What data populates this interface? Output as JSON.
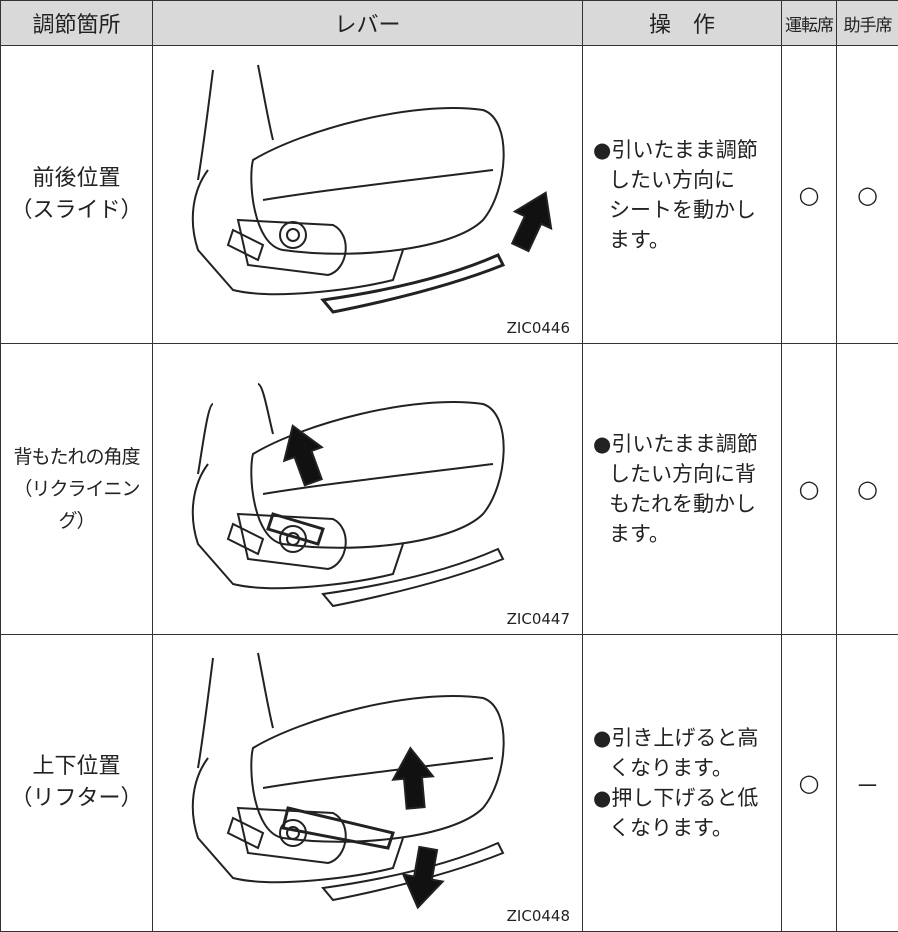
{
  "table": {
    "header": [
      "調節箇所",
      "レバー",
      "操　作",
      "運転席",
      "助手席"
    ],
    "rows": [
      {
        "location": [
          "前後位置",
          "（スライド）"
        ],
        "code": "ZIC0446",
        "operation": [
          [
            "●引いたまま調節",
            "したい方向に",
            "シートを動かし",
            "ます。"
          ]
        ],
        "driver": "○",
        "passenger": "○"
      },
      {
        "location": [
          "背もたれの角度",
          "（リクライニング）"
        ],
        "code": "ZIC0447",
        "operation": [
          [
            "●引いたまま調節",
            "したい方向に背",
            "もたれを動かし",
            "ます。"
          ]
        ],
        "driver": "○",
        "passenger": "○"
      },
      {
        "location": [
          "上下位置",
          "（リフター）"
        ],
        "code": "ZIC0448",
        "operation": [
          [
            "●引き上げると高",
            "くなります。"
          ],
          [
            "●押し下げると低",
            "くなります。"
          ]
        ],
        "driver": "○",
        "passenger": "－"
      }
    ]
  }
}
